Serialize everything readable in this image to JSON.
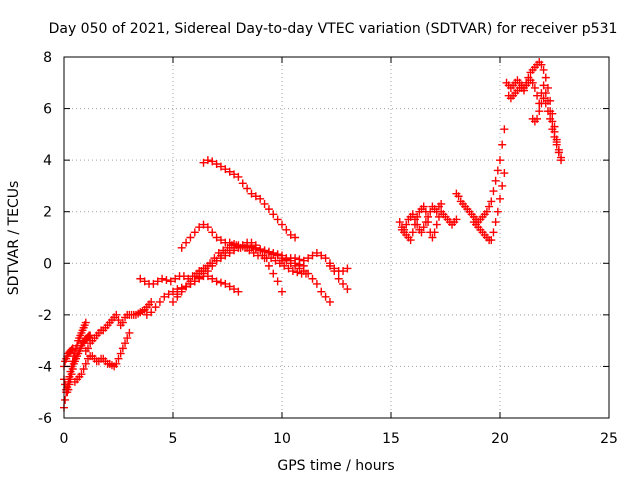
{
  "chart_data": {
    "type": "scatter",
    "title": "Day 050 of 2021, Sidereal Day-to-day VTEC variation (SDTVAR) for receiver p531",
    "xlabel": "GPS time / hours",
    "ylabel": "SDTVAR / TECUs",
    "xlim": [
      0,
      25
    ],
    "ylim": [
      -6,
      8
    ],
    "x_ticks": [
      0,
      5,
      10,
      15,
      20,
      25
    ],
    "y_ticks": [
      -6,
      -4,
      -2,
      0,
      2,
      4,
      6,
      8
    ],
    "x_tick_labels": [
      "0",
      "5",
      "10",
      "15",
      "20",
      "25"
    ],
    "y_tick_labels": [
      "-6",
      "-4",
      "-2",
      "0",
      "2",
      "4",
      "6",
      "8"
    ],
    "grid": true,
    "marker": "+",
    "color": "#ff0000",
    "series": [
      {
        "name": "arc-1",
        "x": [
          0.0,
          0.05,
          0.1,
          0.15,
          0.2,
          0.25,
          0.3,
          0.35,
          0.4,
          0.45,
          0.5,
          0.55,
          0.6,
          0.65,
          0.7,
          0.75,
          0.8,
          0.85,
          0.9,
          0.95,
          1.0
        ],
        "y": [
          -5.6,
          -5.3,
          -5.0,
          -4.8,
          -4.6,
          -4.4,
          -4.2,
          -4.0,
          -3.8,
          -3.6,
          -3.5,
          -3.3,
          -3.2,
          -3.0,
          -2.9,
          -2.8,
          -2.7,
          -2.6,
          -2.5,
          -2.4,
          -2.3
        ]
      },
      {
        "name": "arc-2",
        "x": [
          0.0,
          0.05,
          0.1,
          0.15,
          0.2,
          0.25,
          0.3,
          0.35,
          0.4,
          0.45,
          0.5,
          0.55,
          0.6,
          0.65,
          0.7,
          0.75,
          0.8,
          0.85,
          0.9,
          0.95,
          1.0,
          1.05,
          1.1,
          1.15,
          1.2
        ],
        "y": [
          -4.5,
          -4.7,
          -4.9,
          -5.0,
          -4.9,
          -4.7,
          -4.5,
          -4.3,
          -4.1,
          -3.9,
          -3.8,
          -3.7,
          -3.6,
          -3.5,
          -3.4,
          -3.3,
          -3.2,
          -3.1,
          -3.05,
          -3.0,
          -2.95,
          -2.9,
          -2.85,
          -2.8,
          -2.8
        ]
      },
      {
        "name": "arc-3",
        "x": [
          0.0,
          0.05,
          0.1,
          0.15,
          0.2,
          0.25,
          0.3,
          0.35,
          0.4
        ],
        "y": [
          -4.0,
          -3.8,
          -3.7,
          -3.6,
          -3.5,
          -3.45,
          -3.4,
          -3.35,
          -3.3
        ]
      },
      {
        "name": "arc-4",
        "x": [
          0.5,
          0.6,
          0.7,
          0.8,
          0.9,
          1.0,
          1.1,
          1.2,
          1.3,
          1.4,
          1.5,
          1.6,
          1.7,
          1.8,
          1.9,
          2.0,
          2.1,
          2.2,
          2.3,
          2.4,
          2.5,
          2.6,
          2.7,
          2.8,
          2.9,
          3.0
        ],
        "y": [
          -4.6,
          -4.5,
          -4.4,
          -4.3,
          -4.1,
          -3.9,
          -3.7,
          -3.6,
          -3.6,
          -3.7,
          -3.8,
          -3.8,
          -3.7,
          -3.7,
          -3.8,
          -3.9,
          -3.9,
          -3.95,
          -4.0,
          -3.9,
          -3.7,
          -3.5,
          -3.3,
          -3.1,
          -2.9,
          -2.7
        ]
      },
      {
        "name": "arc-5",
        "x": [
          1.0,
          1.1,
          1.2,
          1.3,
          1.4,
          1.5,
          1.6,
          1.7,
          1.8,
          1.9,
          2.0,
          2.1,
          2.2,
          2.3,
          2.4,
          2.5,
          2.6,
          2.7,
          2.8,
          2.9,
          3.0,
          3.1,
          3.2,
          3.3,
          3.4,
          3.5,
          3.6,
          3.7,
          3.8,
          3.9,
          4.0
        ],
        "y": [
          -3.4,
          -3.3,
          -3.1,
          -3.0,
          -2.9,
          -2.8,
          -2.7,
          -2.6,
          -2.6,
          -2.5,
          -2.4,
          -2.3,
          -2.2,
          -2.1,
          -2.0,
          -2.2,
          -2.4,
          -2.3,
          -2.1,
          -2.0,
          -2.0,
          -2.0,
          -2.0,
          -2.0,
          -1.95,
          -1.9,
          -1.85,
          -1.8,
          -1.7,
          -1.6,
          -1.5
        ]
      },
      {
        "name": "arc-6",
        "x": [
          3.5,
          3.7,
          3.9,
          4.1,
          4.3,
          4.5,
          4.7,
          4.9,
          5.1,
          5.3,
          5.5,
          5.7,
          5.9,
          6.1,
          6.3,
          6.5,
          6.7,
          6.9,
          7.1,
          7.3,
          7.5,
          7.7,
          7.9,
          8.1,
          8.3,
          8.5,
          8.7,
          8.9,
          9.1,
          9.3,
          9.5,
          9.7,
          9.9,
          10.1,
          10.3,
          10.5,
          10.7,
          10.9,
          11.1
        ],
        "y": [
          -0.6,
          -0.7,
          -0.8,
          -0.8,
          -0.7,
          -0.6,
          -0.65,
          -0.7,
          -0.6,
          -0.5,
          -0.5,
          -0.6,
          -0.5,
          -0.4,
          -0.3,
          -0.2,
          0.0,
          0.2,
          0.4,
          0.5,
          0.6,
          0.7,
          0.7,
          0.6,
          0.6,
          0.5,
          0.4,
          0.3,
          0.3,
          0.2,
          0.2,
          0.1,
          0.0,
          -0.1,
          -0.2,
          -0.3,
          -0.35,
          -0.4,
          -0.4
        ]
      },
      {
        "name": "arc-7",
        "x": [
          3.8,
          4.0,
          4.2,
          4.4,
          4.6,
          4.8,
          5.0,
          5.2,
          5.4,
          5.6,
          5.8,
          6.0,
          6.2,
          6.4,
          6.6,
          6.8,
          7.0,
          7.2,
          7.4,
          7.6,
          7.8,
          8.0
        ],
        "y": [
          -2.0,
          -1.9,
          -1.7,
          -1.5,
          -1.3,
          -1.2,
          -1.1,
          -1.0,
          -0.95,
          -0.9,
          -0.8,
          -0.7,
          -0.6,
          -0.5,
          -0.5,
          -0.6,
          -0.7,
          -0.75,
          -0.8,
          -0.9,
          -1.0,
          -1.1
        ]
      },
      {
        "name": "arc-8",
        "x": [
          5.0,
          5.2,
          5.4,
          5.6,
          5.8,
          6.0,
          6.2,
          6.4,
          6.6,
          6.8,
          7.0,
          7.2,
          7.4,
          7.6,
          7.8,
          8.0,
          8.2,
          8.4,
          8.6,
          8.8,
          9.0,
          9.2,
          9.4,
          9.6,
          9.8,
          10.0
        ],
        "y": [
          -1.5,
          -1.3,
          -1.1,
          -0.9,
          -0.7,
          -0.5,
          -0.3,
          -0.2,
          -0.1,
          0.0,
          0.1,
          0.2,
          0.3,
          0.4,
          0.5,
          0.6,
          0.7,
          0.8,
          0.8,
          0.7,
          0.5,
          0.2,
          -0.1,
          -0.4,
          -0.7,
          -1.1
        ]
      },
      {
        "name": "arc-9",
        "x": [
          5.2,
          5.4,
          5.6,
          5.8,
          6.0,
          6.2,
          6.4,
          6.6,
          6.8,
          7.0,
          7.2,
          7.4,
          7.6,
          7.8,
          8.0,
          8.2,
          8.4,
          8.6,
          8.8,
          9.0,
          9.2,
          9.4,
          9.6,
          9.8,
          10.0,
          10.2,
          10.4,
          10.6,
          10.8,
          11.0
        ],
        "y": [
          -1.2,
          -1.0,
          -0.9,
          -0.8,
          -0.7,
          -0.55,
          -0.4,
          -0.3,
          -0.1,
          0.1,
          0.3,
          0.4,
          0.5,
          0.6,
          0.65,
          0.7,
          0.7,
          0.65,
          0.6,
          0.55,
          0.5,
          0.45,
          0.4,
          0.35,
          0.3,
          0.2,
          0.1,
          0.0,
          -0.05,
          -0.1
        ]
      },
      {
        "name": "arc-10",
        "x": [
          5.4,
          5.6,
          5.8,
          6.0,
          6.2,
          6.4,
          6.6,
          6.8,
          7.0,
          7.2,
          7.4,
          7.6,
          7.8,
          8.0,
          8.2,
          8.4,
          8.6,
          8.8,
          9.0,
          9.2,
          9.4,
          9.6,
          9.8,
          10.0,
          10.2,
          10.4,
          10.6,
          10.8,
          11.0,
          11.2,
          11.4,
          11.6,
          11.8,
          12.0,
          12.2
        ],
        "y": [
          0.6,
          0.8,
          1.0,
          1.2,
          1.4,
          1.5,
          1.4,
          1.2,
          1.0,
          0.9,
          0.8,
          0.8,
          0.75,
          0.7,
          0.65,
          0.6,
          0.6,
          0.55,
          0.5,
          0.45,
          0.4,
          0.35,
          0.3,
          0.2,
          0.1,
          0.0,
          -0.1,
          -0.2,
          -0.3,
          -0.4,
          -0.6,
          -0.8,
          -1.1,
          -1.3,
          -1.5
        ]
      },
      {
        "name": "arc-11",
        "x": [
          6.4,
          6.6,
          6.8,
          7.0,
          7.2,
          7.4,
          7.6,
          7.8,
          8.0,
          8.2,
          8.4,
          8.6,
          8.8,
          9.0,
          9.2,
          9.4,
          9.6,
          9.8,
          10.0,
          10.2,
          10.4,
          10.6
        ],
        "y": [
          3.9,
          4.0,
          3.95,
          3.85,
          3.75,
          3.65,
          3.55,
          3.45,
          3.35,
          3.1,
          2.9,
          2.7,
          2.6,
          2.5,
          2.3,
          2.1,
          1.9,
          1.7,
          1.5,
          1.3,
          1.1,
          1.0
        ]
      },
      {
        "name": "arc-12",
        "x": [
          10.0,
          10.2,
          10.4,
          10.6,
          10.8,
          11.0,
          11.2,
          11.4,
          11.6,
          11.8,
          12.0,
          12.2,
          12.4,
          12.6,
          12.8,
          13.0
        ],
        "y": [
          0.1,
          0.15,
          0.2,
          0.2,
          0.15,
          0.1,
          0.2,
          0.3,
          0.4,
          0.3,
          0.2,
          0.0,
          -0.3,
          -0.6,
          -0.8,
          -1.0
        ]
      },
      {
        "name": "arc-13",
        "x": [
          12.2,
          12.4,
          12.6,
          12.8,
          13.0
        ],
        "y": [
          -0.1,
          -0.2,
          -0.3,
          -0.3,
          -0.2
        ]
      },
      {
        "name": "arc-14",
        "x": [
          15.4,
          15.5,
          15.6,
          15.7,
          15.8,
          15.9,
          16.0,
          16.1,
          16.2,
          16.3,
          16.4,
          16.5,
          16.6,
          16.7,
          16.8,
          16.9,
          17.0,
          17.1,
          17.2,
          17.3
        ],
        "y": [
          1.6,
          1.4,
          1.3,
          1.5,
          1.7,
          1.8,
          1.9,
          1.7,
          1.5,
          1.3,
          1.2,
          1.4,
          1.6,
          1.8,
          2.0,
          2.2,
          2.1,
          2.0,
          2.2,
          2.3
        ]
      },
      {
        "name": "arc-15",
        "x": [
          15.5,
          15.6,
          15.7,
          15.8,
          15.9,
          16.0,
          16.1,
          16.2,
          16.3,
          16.4,
          16.5,
          16.6,
          16.7,
          16.8,
          16.9,
          17.0,
          17.1,
          17.2,
          17.3,
          17.4,
          17.5,
          17.6,
          17.7,
          17.8,
          17.9,
          18.0
        ],
        "y": [
          1.3,
          1.2,
          1.1,
          1.0,
          0.9,
          1.2,
          1.5,
          1.8,
          2.0,
          2.1,
          2.2,
          2.0,
          1.6,
          1.2,
          1.0,
          1.2,
          1.5,
          1.8,
          2.0,
          1.9,
          1.8,
          1.7,
          1.6,
          1.5,
          1.6,
          1.7
        ]
      },
      {
        "name": "arc-16",
        "x": [
          18.0,
          18.1,
          18.2,
          18.3,
          18.4,
          18.5,
          18.6,
          18.7,
          18.8,
          18.9,
          19.0,
          19.1,
          19.2,
          19.3,
          19.4,
          19.5,
          19.6,
          19.7,
          19.8,
          19.9,
          20.0,
          20.1,
          20.2
        ],
        "y": [
          2.7,
          2.6,
          2.4,
          2.3,
          2.2,
          2.1,
          2.0,
          1.9,
          1.8,
          1.7,
          1.6,
          1.7,
          1.8,
          1.9,
          2.0,
          2.2,
          2.4,
          2.8,
          3.2,
          3.6,
          4.0,
          4.6,
          5.2
        ]
      },
      {
        "name": "arc-17",
        "x": [
          18.8,
          18.9,
          19.0,
          19.1,
          19.2,
          19.3,
          19.4,
          19.5,
          19.6,
          19.7,
          19.8,
          19.9,
          20.0,
          20.1,
          20.2
        ],
        "y": [
          1.6,
          1.5,
          1.4,
          1.3,
          1.2,
          1.1,
          1.0,
          0.9,
          0.9,
          1.2,
          1.6,
          2.0,
          2.5,
          3.0,
          3.5
        ]
      },
      {
        "name": "arc-18",
        "x": [
          20.3,
          20.4,
          20.5,
          20.6,
          20.7,
          20.8,
          20.9,
          21.0,
          21.1,
          21.2,
          21.3,
          21.4,
          21.5,
          21.6,
          21.7,
          21.8,
          21.9,
          22.0,
          22.1,
          22.2,
          22.3,
          22.4,
          22.5,
          22.6,
          22.7,
          22.8
        ],
        "y": [
          7.0,
          6.9,
          6.8,
          6.9,
          7.0,
          7.1,
          7.0,
          6.9,
          6.8,
          7.0,
          7.2,
          7.4,
          7.5,
          7.6,
          7.7,
          7.8,
          7.7,
          7.5,
          7.2,
          6.8,
          6.3,
          5.8,
          5.3,
          4.8,
          4.4,
          4.1
        ]
      },
      {
        "name": "arc-19",
        "x": [
          20.4,
          20.5,
          20.6,
          20.7,
          20.8,
          20.9,
          21.0,
          21.1,
          21.2,
          21.3,
          21.4,
          21.5,
          21.6,
          21.7,
          21.8,
          21.9,
          22.0,
          22.1,
          22.2,
          22.3,
          22.4,
          22.5,
          22.6,
          22.7
        ],
        "y": [
          6.5,
          6.4,
          6.5,
          6.6,
          6.7,
          6.8,
          6.8,
          6.7,
          6.9,
          7.0,
          7.1,
          7.0,
          6.8,
          6.5,
          6.2,
          6.6,
          6.9,
          6.6,
          6.3,
          5.9,
          5.5,
          5.1,
          4.7,
          4.3
        ]
      },
      {
        "name": "arc-20",
        "x": [
          21.5,
          21.6,
          21.7,
          21.8,
          21.9,
          22.0,
          22.1,
          22.2,
          22.3,
          22.4,
          22.5,
          22.6,
          22.7,
          22.8
        ],
        "y": [
          5.6,
          5.5,
          5.6,
          5.9,
          6.2,
          6.4,
          6.2,
          5.9,
          5.6,
          5.2,
          4.9,
          4.6,
          4.3,
          4.0
        ]
      }
    ]
  }
}
